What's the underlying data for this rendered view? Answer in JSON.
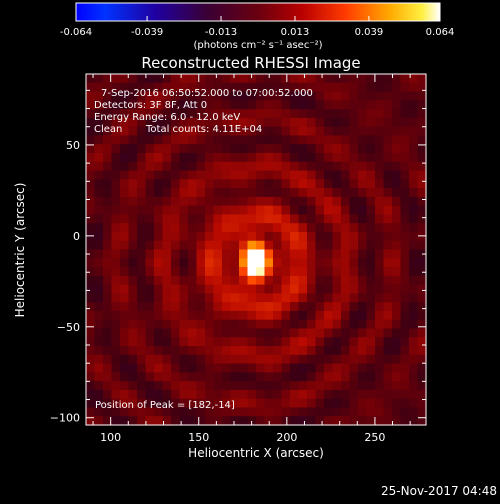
{
  "colorbar": {
    "tick_labels": [
      "-0.064",
      "-0.039",
      "-0.013",
      "0.013",
      "0.039",
      "0.064"
    ],
    "tick_values": [
      -0.064,
      -0.039,
      -0.013,
      0.013,
      0.039,
      0.064
    ],
    "range": [
      -0.064,
      0.064
    ],
    "units": "(photons cm⁻² s⁻¹ asec⁻²)"
  },
  "plot": {
    "title": "Reconstructed RHESSI Image",
    "info": {
      "time_range": "7-Sep-2016 06:50:52.000 to 07:00:52.000",
      "detectors": "Detectors: 3F 8F, Att 0",
      "energy_range": "Energy Range: 6.0 - 12.0 keV",
      "algorithm": "Clean",
      "total_counts": "Total counts: 4.11E+04"
    },
    "peak_text": "Position of Peak = [182,-14]",
    "footer_date": "25-Nov-2017 04:48"
  },
  "chart_data": {
    "type": "heatmap",
    "title": "Reconstructed RHESSI Image",
    "xlabel": "Heliocentric X (arcsec)",
    "ylabel": "Heliocentric Y (arcsec)",
    "xlim": [
      86,
      279
    ],
    "ylim": [
      -104,
      89
    ],
    "x_ticks": [
      100,
      150,
      200,
      250
    ],
    "y_ticks": [
      -100,
      -50,
      0,
      50
    ],
    "x_tick_labels": [
      "100",
      "150",
      "200",
      "250"
    ],
    "y_tick_labels": [
      "−100",
      "−50",
      "0",
      "50"
    ],
    "colormap": "RHESSI thermal (black-red-orange-yellow-white; negative to blue)",
    "color_range": [
      -0.064,
      0.064
    ],
    "peak": {
      "x": 182,
      "y": -14,
      "value": 0.064
    },
    "source_sigma_arcsec": [
      4.5,
      6.5
    ],
    "background_level": 0.004,
    "ripple_amplitude": 0.009
  }
}
